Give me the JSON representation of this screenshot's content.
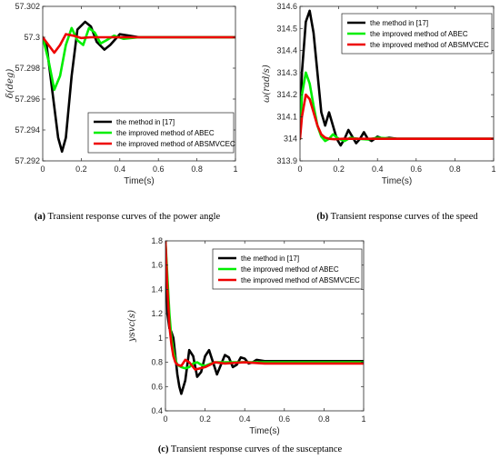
{
  "chart_data": [
    {
      "id": "a",
      "type": "line",
      "title": "",
      "caption_tag": "(a)",
      "caption": "Transient response curves of the power angle",
      "xlabel": "Time(s)",
      "ylabel": "δ(deg)",
      "xlim": [
        0,
        1
      ],
      "ylim": [
        57.292,
        57.302
      ],
      "xticks": [
        0,
        0.2,
        0.4,
        0.6,
        0.8,
        1
      ],
      "xtick_labels": [
        "0",
        "0.2",
        "0.4",
        "0.6",
        "0.8",
        "1"
      ],
      "yticks": [
        57.292,
        57.294,
        57.296,
        57.298,
        57.3,
        57.302
      ],
      "ytick_labels": [
        "57.292",
        "57.294",
        "57.296",
        "57.298",
        "57.3",
        "57.302"
      ],
      "grid": false,
      "legend_position": "center-right",
      "series": [
        {
          "name": "the method in [17]",
          "color": "#000000",
          "x": [
            0,
            0.02,
            0.05,
            0.08,
            0.1,
            0.12,
            0.15,
            0.18,
            0.22,
            0.25,
            0.28,
            0.32,
            0.35,
            0.4,
            0.45,
            0.5,
            0.6,
            1.0
          ],
          "y": [
            57.3,
            57.2995,
            57.2965,
            57.2935,
            57.2926,
            57.2935,
            57.2975,
            57.3005,
            57.301,
            57.3007,
            57.2997,
            57.2992,
            57.2995,
            57.3002,
            57.3001,
            57.3,
            57.3,
            57.3
          ]
        },
        {
          "name": "the improved method of ABEC",
          "color": "#00ee00",
          "x": [
            0,
            0.03,
            0.06,
            0.09,
            0.12,
            0.15,
            0.18,
            0.21,
            0.24,
            0.27,
            0.3,
            0.33,
            0.37,
            0.42,
            0.5,
            1.0
          ],
          "y": [
            57.3,
            57.2985,
            57.2966,
            57.2975,
            57.2995,
            57.3006,
            57.2998,
            57.2995,
            57.3006,
            57.3003,
            57.2996,
            57.2998,
            57.3001,
            57.2999,
            57.3,
            57.3
          ]
        },
        {
          "name": "the improved method of ABSMVCEC",
          "color": "#ee0000",
          "x": [
            0,
            0.03,
            0.06,
            0.09,
            0.12,
            0.16,
            0.2,
            0.25,
            0.3,
            1.0
          ],
          "y": [
            57.3,
            57.2995,
            57.299,
            57.2995,
            57.3002,
            57.3001,
            57.29995,
            57.3,
            57.3,
            57.3
          ]
        }
      ]
    },
    {
      "id": "b",
      "type": "line",
      "title": "",
      "caption_tag": "(b)",
      "caption": "Transient response curves of the speed",
      "xlabel": "Time(s)",
      "ylabel": "ω(rad/s)",
      "xlim": [
        0,
        1
      ],
      "ylim": [
        313.9,
        314.6
      ],
      "xticks": [
        0,
        0.2,
        0.4,
        0.6,
        0.8,
        1
      ],
      "xtick_labels": [
        "0",
        "0.2",
        "0.4",
        "0.6",
        "0.8",
        "1"
      ],
      "yticks": [
        313.9,
        314,
        314.1,
        314.2,
        314.3,
        314.4,
        314.5,
        314.6
      ],
      "ytick_labels": [
        "313.9",
        "314",
        "314.1",
        "314.2",
        "314.3",
        "314.4",
        "314.5",
        "314.6"
      ],
      "grid": false,
      "legend_position": "top-right",
      "series": [
        {
          "name": "the method in [17]",
          "color": "#000000",
          "x": [
            0,
            0.01,
            0.03,
            0.05,
            0.07,
            0.09,
            0.11,
            0.13,
            0.15,
            0.17,
            0.19,
            0.21,
            0.23,
            0.25,
            0.27,
            0.29,
            0.31,
            0.33,
            0.35,
            0.37,
            0.4,
            0.43,
            0.46,
            0.5,
            1.0
          ],
          "y": [
            314.0,
            314.3,
            314.53,
            314.58,
            314.48,
            314.3,
            314.12,
            314.06,
            314.12,
            314.06,
            314.0,
            313.97,
            314.0,
            314.04,
            314.01,
            313.98,
            314.0,
            314.03,
            314.0,
            313.99,
            314.01,
            314.0,
            314.005,
            314.0,
            314.0
          ]
        },
        {
          "name": "the improved method of ABEC",
          "color": "#00ee00",
          "x": [
            0,
            0.01,
            0.03,
            0.05,
            0.07,
            0.09,
            0.11,
            0.13,
            0.15,
            0.17,
            0.2,
            0.23,
            0.26,
            0.3,
            0.35,
            0.4,
            0.5,
            1.0
          ],
          "y": [
            314.0,
            314.2,
            314.3,
            314.25,
            314.15,
            314.06,
            314.01,
            313.99,
            314.0,
            314.02,
            314.0,
            313.99,
            314.005,
            314.0,
            313.997,
            314.005,
            314.0,
            314.0
          ]
        },
        {
          "name": "the improved method of ABSMVCEC",
          "color": "#ee0000",
          "x": [
            0,
            0.01,
            0.03,
            0.05,
            0.07,
            0.09,
            0.11,
            0.13,
            0.15,
            0.18,
            0.22,
            0.26,
            0.3,
            1.0
          ],
          "y": [
            314.0,
            314.1,
            314.2,
            314.18,
            314.12,
            314.06,
            314.02,
            314.005,
            314.0,
            313.998,
            314.0,
            314.0,
            314.0,
            314.0
          ]
        }
      ]
    },
    {
      "id": "c",
      "type": "line",
      "title": "",
      "caption_tag": "(c)",
      "caption": "Transient response curves of the susceptance",
      "xlabel": "Time(s)",
      "ylabel": "ysvc(s)",
      "xlim": [
        0,
        1
      ],
      "ylim": [
        0.4,
        1.8
      ],
      "xticks": [
        0,
        0.2,
        0.4,
        0.6,
        0.8,
        1
      ],
      "xtick_labels": [
        "0",
        "0.2",
        "0.4",
        "0.6",
        "0.8",
        "1"
      ],
      "yticks": [
        0.4,
        0.6,
        0.8,
        1,
        1.2,
        1.4,
        1.6,
        1.8
      ],
      "ytick_labels": [
        "0.4",
        "0.6",
        "0.8",
        "1",
        "1.2",
        "1.4",
        "1.6",
        "1.8"
      ],
      "grid": false,
      "legend_position": "top-right",
      "series": [
        {
          "name": "the method in [17]",
          "color": "#000000",
          "x": [
            0,
            0.01,
            0.02,
            0.03,
            0.04,
            0.05,
            0.06,
            0.07,
            0.08,
            0.1,
            0.12,
            0.14,
            0.16,
            0.18,
            0.2,
            0.22,
            0.24,
            0.26,
            0.28,
            0.3,
            0.32,
            0.34,
            0.36,
            0.38,
            0.4,
            0.42,
            0.44,
            0.46,
            0.5,
            0.55,
            1.0
          ],
          "y": [
            1.8,
            1.2,
            1.08,
            1.05,
            1.0,
            0.85,
            0.7,
            0.6,
            0.54,
            0.65,
            0.9,
            0.85,
            0.68,
            0.72,
            0.85,
            0.9,
            0.8,
            0.7,
            0.78,
            0.86,
            0.84,
            0.76,
            0.78,
            0.84,
            0.83,
            0.79,
            0.8,
            0.82,
            0.81,
            0.81,
            0.81
          ]
        },
        {
          "name": "the improved method of ABEC",
          "color": "#00ee00",
          "x": [
            0,
            0.01,
            0.02,
            0.03,
            0.04,
            0.05,
            0.06,
            0.08,
            0.1,
            0.12,
            0.14,
            0.16,
            0.18,
            0.2,
            0.23,
            0.26,
            0.3,
            0.35,
            0.4,
            1.0
          ],
          "y": [
            1.8,
            1.5,
            1.2,
            1.0,
            0.9,
            0.82,
            0.78,
            0.76,
            0.75,
            0.76,
            0.79,
            0.8,
            0.78,
            0.77,
            0.79,
            0.8,
            0.8,
            0.8,
            0.8,
            0.8
          ]
        },
        {
          "name": "the improved method of ABSMVCEC",
          "color": "#ee0000",
          "x": [
            0,
            0.01,
            0.02,
            0.03,
            0.04,
            0.05,
            0.06,
            0.08,
            0.1,
            0.12,
            0.15,
            0.2,
            0.25,
            0.3,
            0.4,
            0.5,
            1.0
          ],
          "y": [
            1.8,
            1.4,
            1.1,
            0.95,
            0.85,
            0.8,
            0.78,
            0.77,
            0.82,
            0.8,
            0.74,
            0.76,
            0.8,
            0.79,
            0.8,
            0.79,
            0.79
          ]
        }
      ]
    }
  ]
}
